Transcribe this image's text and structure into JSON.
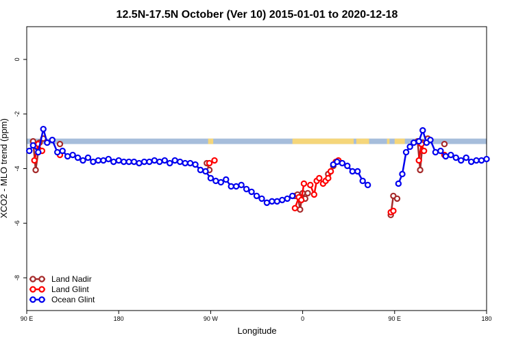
{
  "chart_data": {
    "type": "line",
    "title": "12.5N-17.5N October (Ver 10)   2015-01-01 to 2020-12-18",
    "xlabel": "Longitude",
    "ylabel": "XCO2 - MLO trend (ppm)",
    "xlim": [
      90,
      450
    ],
    "ylim": [
      -9.2,
      1.2
    ],
    "x_ticks": [
      {
        "value": 90,
        "label": "90 E"
      },
      {
        "value": 162,
        "label": "180"
      },
      {
        "value": 234,
        "label": "90 W"
      },
      {
        "value": 306,
        "label": "0"
      },
      {
        "value": 378,
        "label": "90 E"
      },
      {
        "value": 450,
        "label": "180"
      }
    ],
    "y_ticks": [
      {
        "value": 0,
        "label": "0"
      },
      {
        "value": -2,
        "label": "-2"
      },
      {
        "value": -4,
        "label": "-4"
      },
      {
        "value": -6,
        "label": "-6"
      },
      {
        "value": -8,
        "label": "-8"
      }
    ],
    "grid": false,
    "legend_position": "bottom-left",
    "land_band": {
      "y_range": [
        -3.1,
        -2.9
      ],
      "ocean_color": "#a6bddb",
      "land_color": "#f5d67a",
      "land_segments": [
        [
          232,
          234
        ],
        [
          234,
          236
        ],
        [
          298,
          346
        ],
        [
          348,
          351
        ],
        [
          351,
          358
        ],
        [
          372,
          374
        ],
        [
          378,
          386
        ]
      ]
    },
    "series": [
      {
        "name": "Land Nadir",
        "color": "#a52a2a",
        "segments": [
          {
            "x": [
              95,
              97,
              100,
              103
            ],
            "y": [
              -3.0,
              -4.05,
              -3.05,
              -2.9
            ]
          },
          {
            "x": [
              116
            ],
            "y": [
              -3.1
            ]
          },
          {
            "x": [
              231,
              233
            ],
            "y": [
              -3.8,
              -4.05
            ]
          },
          {
            "x": [
              300,
              302,
              304,
              306,
              308,
              310
            ],
            "y": [
              -5.0,
              -4.95,
              -5.5,
              -4.9,
              -5.1,
              -4.9
            ]
          },
          {
            "x": [
              326,
              330
            ],
            "y": [
              -4.2,
              -3.9
            ]
          },
          {
            "x": [
              375,
              377,
              380
            ],
            "y": [
              -5.7,
              -5.0,
              -5.1
            ]
          },
          {
            "x": [
              396,
              398,
              400,
              404
            ],
            "y": [
              -3.0,
              -4.05,
              -3.05,
              -2.9
            ]
          },
          {
            "x": [
              417
            ],
            "y": [
              -3.1
            ]
          }
        ]
      },
      {
        "name": "Land Glint",
        "color": "#ff0000",
        "segments": [
          {
            "x": [
              96,
              99,
              102
            ],
            "y": [
              -3.7,
              -3.1,
              -3.35
            ]
          },
          {
            "x": [
              116
            ],
            "y": [
              -3.5
            ]
          },
          {
            "x": [
              233,
              237
            ],
            "y": [
              -3.8,
              -3.7
            ]
          },
          {
            "x": [
              300,
              303,
              305,
              307
            ],
            "y": [
              -5.45,
              -5.05,
              -5.15,
              -4.55
            ]
          },
          {
            "x": [
              312,
              315,
              317,
              319,
              322,
              324,
              326,
              328
            ],
            "y": [
              -4.6,
              -4.95,
              -4.45,
              -4.35,
              -4.55,
              -4.45,
              -4.35,
              -4.1
            ]
          },
          {
            "x": [
              332,
              334
            ],
            "y": [
              -3.75,
              -3.7
            ]
          },
          {
            "x": [
              375,
              377
            ],
            "y": [
              -5.6,
              -5.55
            ]
          },
          {
            "x": [
              397,
              399,
              401
            ],
            "y": [
              -3.7,
              -3.1,
              -3.35
            ]
          },
          {
            "x": [
              417
            ],
            "y": [
              -3.5
            ]
          }
        ]
      },
      {
        "name": "Ocean Glint",
        "color": "#0000ee",
        "segments": [
          {
            "x": [
              92,
              95,
              99,
              103,
              106,
              110,
              114,
              118,
              122,
              126,
              130,
              134,
              138,
              142,
              146,
              150,
              154,
              158,
              162,
              166,
              170,
              174,
              178,
              182,
              186,
              190,
              194,
              198,
              202,
              206,
              210,
              214,
              218,
              222,
              226,
              230,
              234,
              238,
              242,
              246,
              250,
              254,
              258,
              262,
              266,
              270,
              274,
              278,
              282,
              286,
              290,
              294,
              298
            ],
            "y": [
              -3.35,
              -3.15,
              -3.4,
              -2.55,
              -3.05,
              -2.95,
              -3.4,
              -3.35,
              -3.55,
              -3.5,
              -3.6,
              -3.7,
              -3.6,
              -3.75,
              -3.7,
              -3.7,
              -3.65,
              -3.75,
              -3.7,
              -3.75,
              -3.75,
              -3.75,
              -3.8,
              -3.75,
              -3.75,
              -3.7,
              -3.75,
              -3.7,
              -3.8,
              -3.7,
              -3.75,
              -3.8,
              -3.8,
              -3.85,
              -4.05,
              -4.1,
              -4.35,
              -4.45,
              -4.5,
              -4.4,
              -4.65,
              -4.65,
              -4.6,
              -4.75,
              -4.85,
              -5.0,
              -5.1,
              -5.25,
              -5.2,
              -5.2,
              -5.15,
              -5.1,
              -5.0
            ]
          },
          {
            "x": [
              330,
              333,
              337,
              341,
              345,
              349,
              353,
              357
            ],
            "y": [
              -3.85,
              -3.75,
              -3.8,
              -3.9,
              -4.1,
              -4.1,
              -4.45,
              -4.6
            ]
          },
          {
            "x": [
              381,
              384,
              387,
              390,
              393,
              397,
              400,
              403,
              406,
              410,
              414,
              418,
              422,
              426,
              430,
              434,
              438,
              442,
              446,
              450
            ],
            "y": [
              -4.55,
              -4.2,
              -3.4,
              -3.2,
              -3.05,
              -3.0,
              -2.6,
              -3.05,
              -2.95,
              -3.4,
              -3.35,
              -3.55,
              -3.5,
              -3.6,
              -3.7,
              -3.6,
              -3.75,
              -3.7,
              -3.7,
              -3.65
            ]
          }
        ]
      }
    ]
  }
}
